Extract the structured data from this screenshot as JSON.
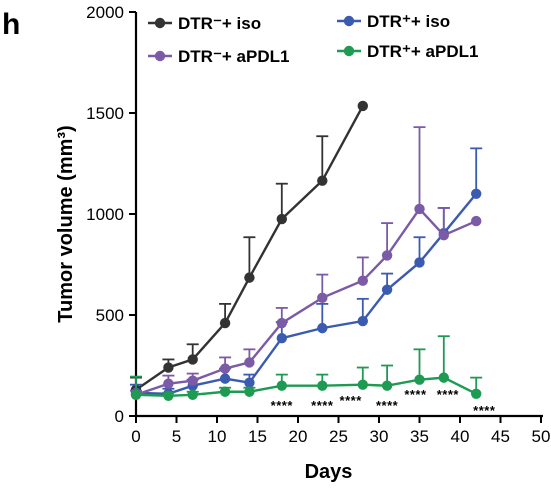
{
  "panel_label": "h",
  "chart_data": {
    "type": "line",
    "xlabel": "Days",
    "ylabel": "Tumor volume (mm³)",
    "xlim": [
      0,
      50
    ],
    "ylim": [
      0,
      2000
    ],
    "xticks": [
      "0",
      "5",
      "10",
      "15",
      "20",
      "25",
      "30",
      "35",
      "40",
      "45",
      "50"
    ],
    "yticks": [
      "0",
      "500",
      "1000",
      "1500",
      "2000"
    ],
    "grid": false,
    "legend_position": "top",
    "series": [
      {
        "name": "DTR⁻+ iso",
        "color": "#333333",
        "points": [
          {
            "x": 0,
            "y": 130,
            "err": 60
          },
          {
            "x": 4,
            "y": 240,
            "err": 40
          },
          {
            "x": 7,
            "y": 280,
            "err": 75
          },
          {
            "x": 11,
            "y": 460,
            "err": 95
          },
          {
            "x": 14,
            "y": 685,
            "err": 200
          },
          {
            "x": 18,
            "y": 975,
            "err": 175
          },
          {
            "x": 23,
            "y": 1165,
            "err": 220
          },
          {
            "x": 28,
            "y": 1535,
            "err": 0
          }
        ]
      },
      {
        "name": "DTR⁺+ iso",
        "color": "#3b5bb0",
        "points": [
          {
            "x": 0,
            "y": 115,
            "err": 40
          },
          {
            "x": 4,
            "y": 110,
            "err": 25
          },
          {
            "x": 7,
            "y": 150,
            "err": 30
          },
          {
            "x": 11,
            "y": 185,
            "err": 50
          },
          {
            "x": 14,
            "y": 165,
            "err": 40
          },
          {
            "x": 18,
            "y": 385,
            "err": 80
          },
          {
            "x": 23,
            "y": 435,
            "err": 120
          },
          {
            "x": 28,
            "y": 470,
            "err": 110
          },
          {
            "x": 31,
            "y": 625,
            "err": 80
          },
          {
            "x": 35,
            "y": 760,
            "err": 125
          },
          {
            "x": 38,
            "y": 905,
            "err": 125
          },
          {
            "x": 42,
            "y": 1100,
            "err": 225
          }
        ]
      },
      {
        "name": "DTR⁻+ aPDL1",
        "color": "#7b5aa6",
        "points": [
          {
            "x": 0,
            "y": 105,
            "err": 20
          },
          {
            "x": 4,
            "y": 160,
            "err": 40
          },
          {
            "x": 7,
            "y": 175,
            "err": 35
          },
          {
            "x": 11,
            "y": 235,
            "err": 55
          },
          {
            "x": 14,
            "y": 265,
            "err": 65
          },
          {
            "x": 18,
            "y": 460,
            "err": 75
          },
          {
            "x": 23,
            "y": 585,
            "err": 115
          },
          {
            "x": 28,
            "y": 670,
            "err": 115
          },
          {
            "x": 31,
            "y": 795,
            "err": 160
          },
          {
            "x": 35,
            "y": 1025,
            "err": 405
          },
          {
            "x": 38,
            "y": 895,
            "err": 135
          },
          {
            "x": 42,
            "y": 965,
            "err": 0
          }
        ]
      },
      {
        "name": "DTR⁺+ aPDL1",
        "color": "#1f9a52",
        "points": [
          {
            "x": 0,
            "y": 105,
            "err": 90
          },
          {
            "x": 4,
            "y": 100,
            "err": 15
          },
          {
            "x": 7,
            "y": 105,
            "err": 15
          },
          {
            "x": 11,
            "y": 120,
            "err": 20
          },
          {
            "x": 14,
            "y": 120,
            "err": 20
          },
          {
            "x": 18,
            "y": 150,
            "err": 55
          },
          {
            "x": 23,
            "y": 150,
            "err": 55
          },
          {
            "x": 28,
            "y": 155,
            "err": 85
          },
          {
            "x": 31,
            "y": 150,
            "err": 100
          },
          {
            "x": 35,
            "y": 180,
            "err": 150
          },
          {
            "x": 38,
            "y": 190,
            "err": 205
          },
          {
            "x": 42,
            "y": 110,
            "err": 80
          }
        ]
      }
    ],
    "annotations": [
      {
        "text": "****",
        "x": 18,
        "y": 60
      },
      {
        "text": "****",
        "x": 23,
        "y": 60
      },
      {
        "text": "****",
        "x": 26.5,
        "y": 85
      },
      {
        "text": "****",
        "x": 31,
        "y": 60
      },
      {
        "text": "****",
        "x": 34.5,
        "y": 115
      },
      {
        "text": "****",
        "x": 38.5,
        "y": 115
      },
      {
        "text": "****",
        "x": 43,
        "y": 35
      }
    ]
  }
}
